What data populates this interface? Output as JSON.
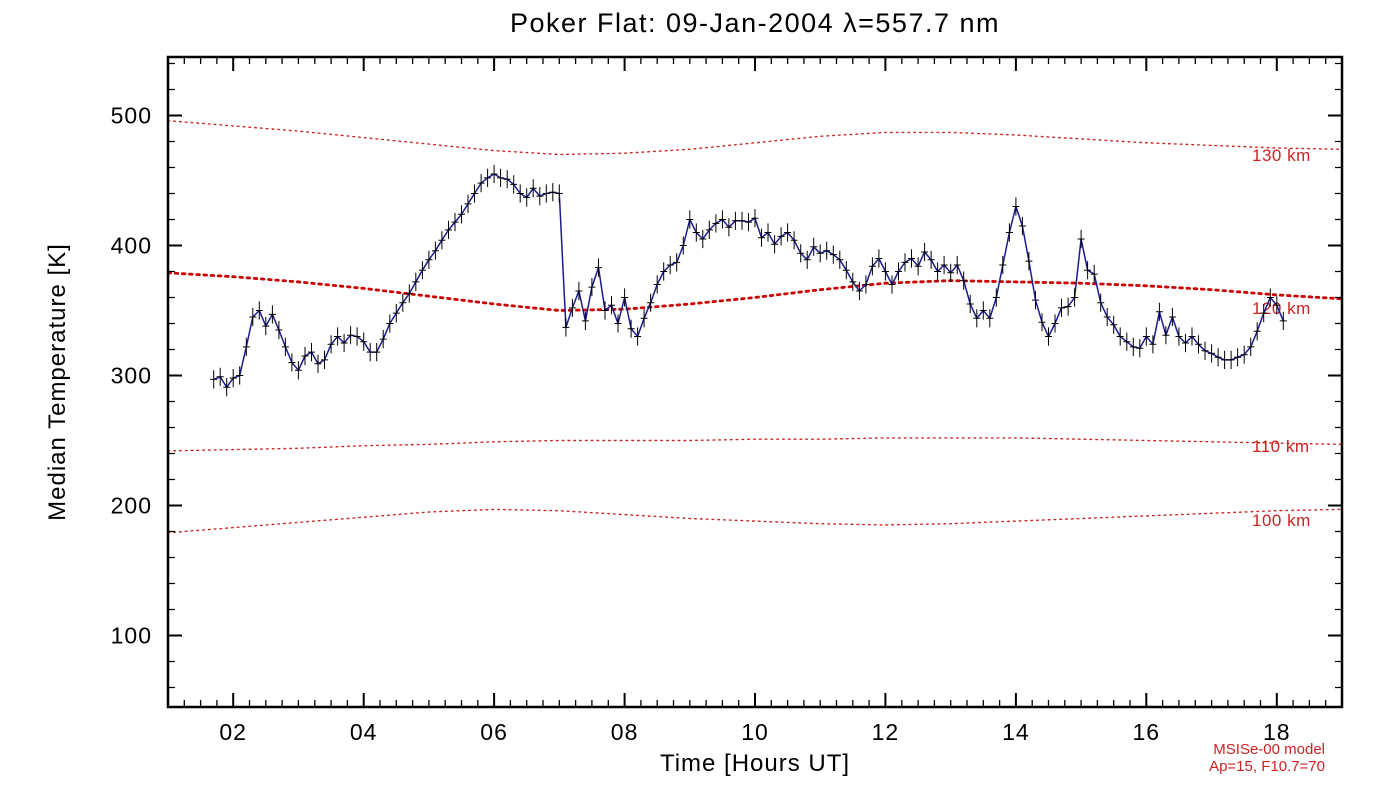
{
  "chart_data": {
    "type": "line",
    "title": "Poker Flat: 09-Jan-2004 λ=557.7 nm",
    "xlabel": "Time [Hours UT]",
    "ylabel": "Median Temperature [K]",
    "xlim": [
      1,
      19
    ],
    "ylim": [
      45,
      545
    ],
    "xticks": [
      2,
      4,
      6,
      8,
      10,
      12,
      14,
      16,
      18
    ],
    "xtick_labels": [
      "02",
      "04",
      "06",
      "08",
      "10",
      "12",
      "14",
      "16",
      "18"
    ],
    "x_minor_step": 0.25,
    "yticks": [
      100,
      200,
      300,
      400,
      500
    ],
    "ytick_labels": [
      "100",
      "200",
      "300",
      "400",
      "500"
    ],
    "y_minor_step": 20,
    "grid": false,
    "axis_color": "#000000",
    "series": [
      {
        "name": "median temperature (557.7 nm airglow)",
        "color": "#1c1c8f",
        "marker": "plus-with-error-bar",
        "marker_color": "#000000",
        "error_half_width_K": 7,
        "x_start": 1.7,
        "x_step": 0.1,
        "y": [
          297,
          299,
          291,
          298,
          300,
          322,
          345,
          350,
          338,
          347,
          335,
          322,
          310,
          304,
          315,
          318,
          309,
          312,
          324,
          330,
          325,
          331,
          330,
          326,
          318,
          318,
          328,
          340,
          348,
          356,
          363,
          372,
          381,
          389,
          396,
          404,
          412,
          418,
          424,
          432,
          440,
          448,
          452,
          455,
          452,
          451,
          447,
          440,
          437,
          444,
          438,
          440,
          441,
          440,
          337,
          352,
          365,
          342,
          368,
          383,
          350,
          354,
          340,
          360,
          336,
          330,
          344,
          356,
          370,
          380,
          385,
          387,
          400,
          420,
          410,
          405,
          412,
          417,
          420,
          414,
          419,
          419,
          418,
          421,
          406,
          410,
          401,
          407,
          410,
          404,
          394,
          389,
          399,
          394,
          396,
          393,
          389,
          381,
          372,
          365,
          370,
          384,
          390,
          380,
          370,
          380,
          387,
          390,
          384,
          395,
          389,
          380,
          385,
          379,
          385,
          373,
          355,
          344,
          350,
          344,
          360,
          385,
          410,
          430,
          415,
          388,
          358,
          341,
          330,
          340,
          352,
          353,
          360,
          405,
          381,
          378,
          356,
          345,
          339,
          330,
          326,
          322,
          321,
          330,
          324,
          349,
          331,
          345,
          330,
          325,
          330,
          324,
          319,
          317,
          314,
          312,
          312,
          314,
          316,
          322,
          334,
          348,
          360,
          354,
          342
        ]
      }
    ],
    "model_curves": [
      {
        "label": "130 km",
        "style": "dotted-thin",
        "color": "#cc2222",
        "x": [
          1,
          2,
          3,
          4,
          5,
          6,
          7,
          8,
          9,
          10,
          11,
          12,
          13,
          14,
          15,
          16,
          17,
          18,
          19
        ],
        "y": [
          496,
          492,
          488,
          483,
          478,
          473,
          470,
          471,
          474,
          479,
          484,
          487,
          487,
          485,
          482,
          479,
          477,
          475,
          474
        ]
      },
      {
        "label": "120 km",
        "style": "dotted-bold",
        "color": "#cc0000",
        "x": [
          1,
          2,
          3,
          4,
          5,
          6,
          7,
          8,
          9,
          10,
          11,
          12,
          13,
          14,
          15,
          16,
          17,
          18,
          19
        ],
        "y": [
          379,
          376,
          372,
          367,
          361,
          355,
          350,
          351,
          355,
          360,
          366,
          371,
          373,
          372,
          371,
          369,
          366,
          362,
          359
        ]
      },
      {
        "label": "110 km",
        "style": "dotted-thin",
        "color": "#cc2222",
        "x": [
          1,
          2,
          3,
          4,
          5,
          6,
          7,
          8,
          9,
          10,
          11,
          12,
          13,
          14,
          15,
          16,
          17,
          18,
          19
        ],
        "y": [
          242,
          243,
          244,
          246,
          247,
          249,
          250,
          250,
          250,
          251,
          251,
          252,
          252,
          252,
          251,
          250,
          249,
          248,
          247
        ]
      },
      {
        "label": "100 km",
        "style": "dotted-thin",
        "color": "#cc2222",
        "x": [
          1,
          2,
          3,
          4,
          5,
          6,
          7,
          8,
          9,
          10,
          11,
          12,
          13,
          14,
          15,
          16,
          17,
          18,
          19
        ],
        "y": [
          179,
          183,
          187,
          191,
          195,
          197,
          196,
          193,
          190,
          188,
          186,
          185,
          186,
          188,
          190,
          192,
          194,
          196,
          197
        ]
      }
    ],
    "annotations": {
      "line1": "MSISe-00 model",
      "line2": "Ap=15, F10.7=70",
      "color": "#cc2222"
    }
  }
}
